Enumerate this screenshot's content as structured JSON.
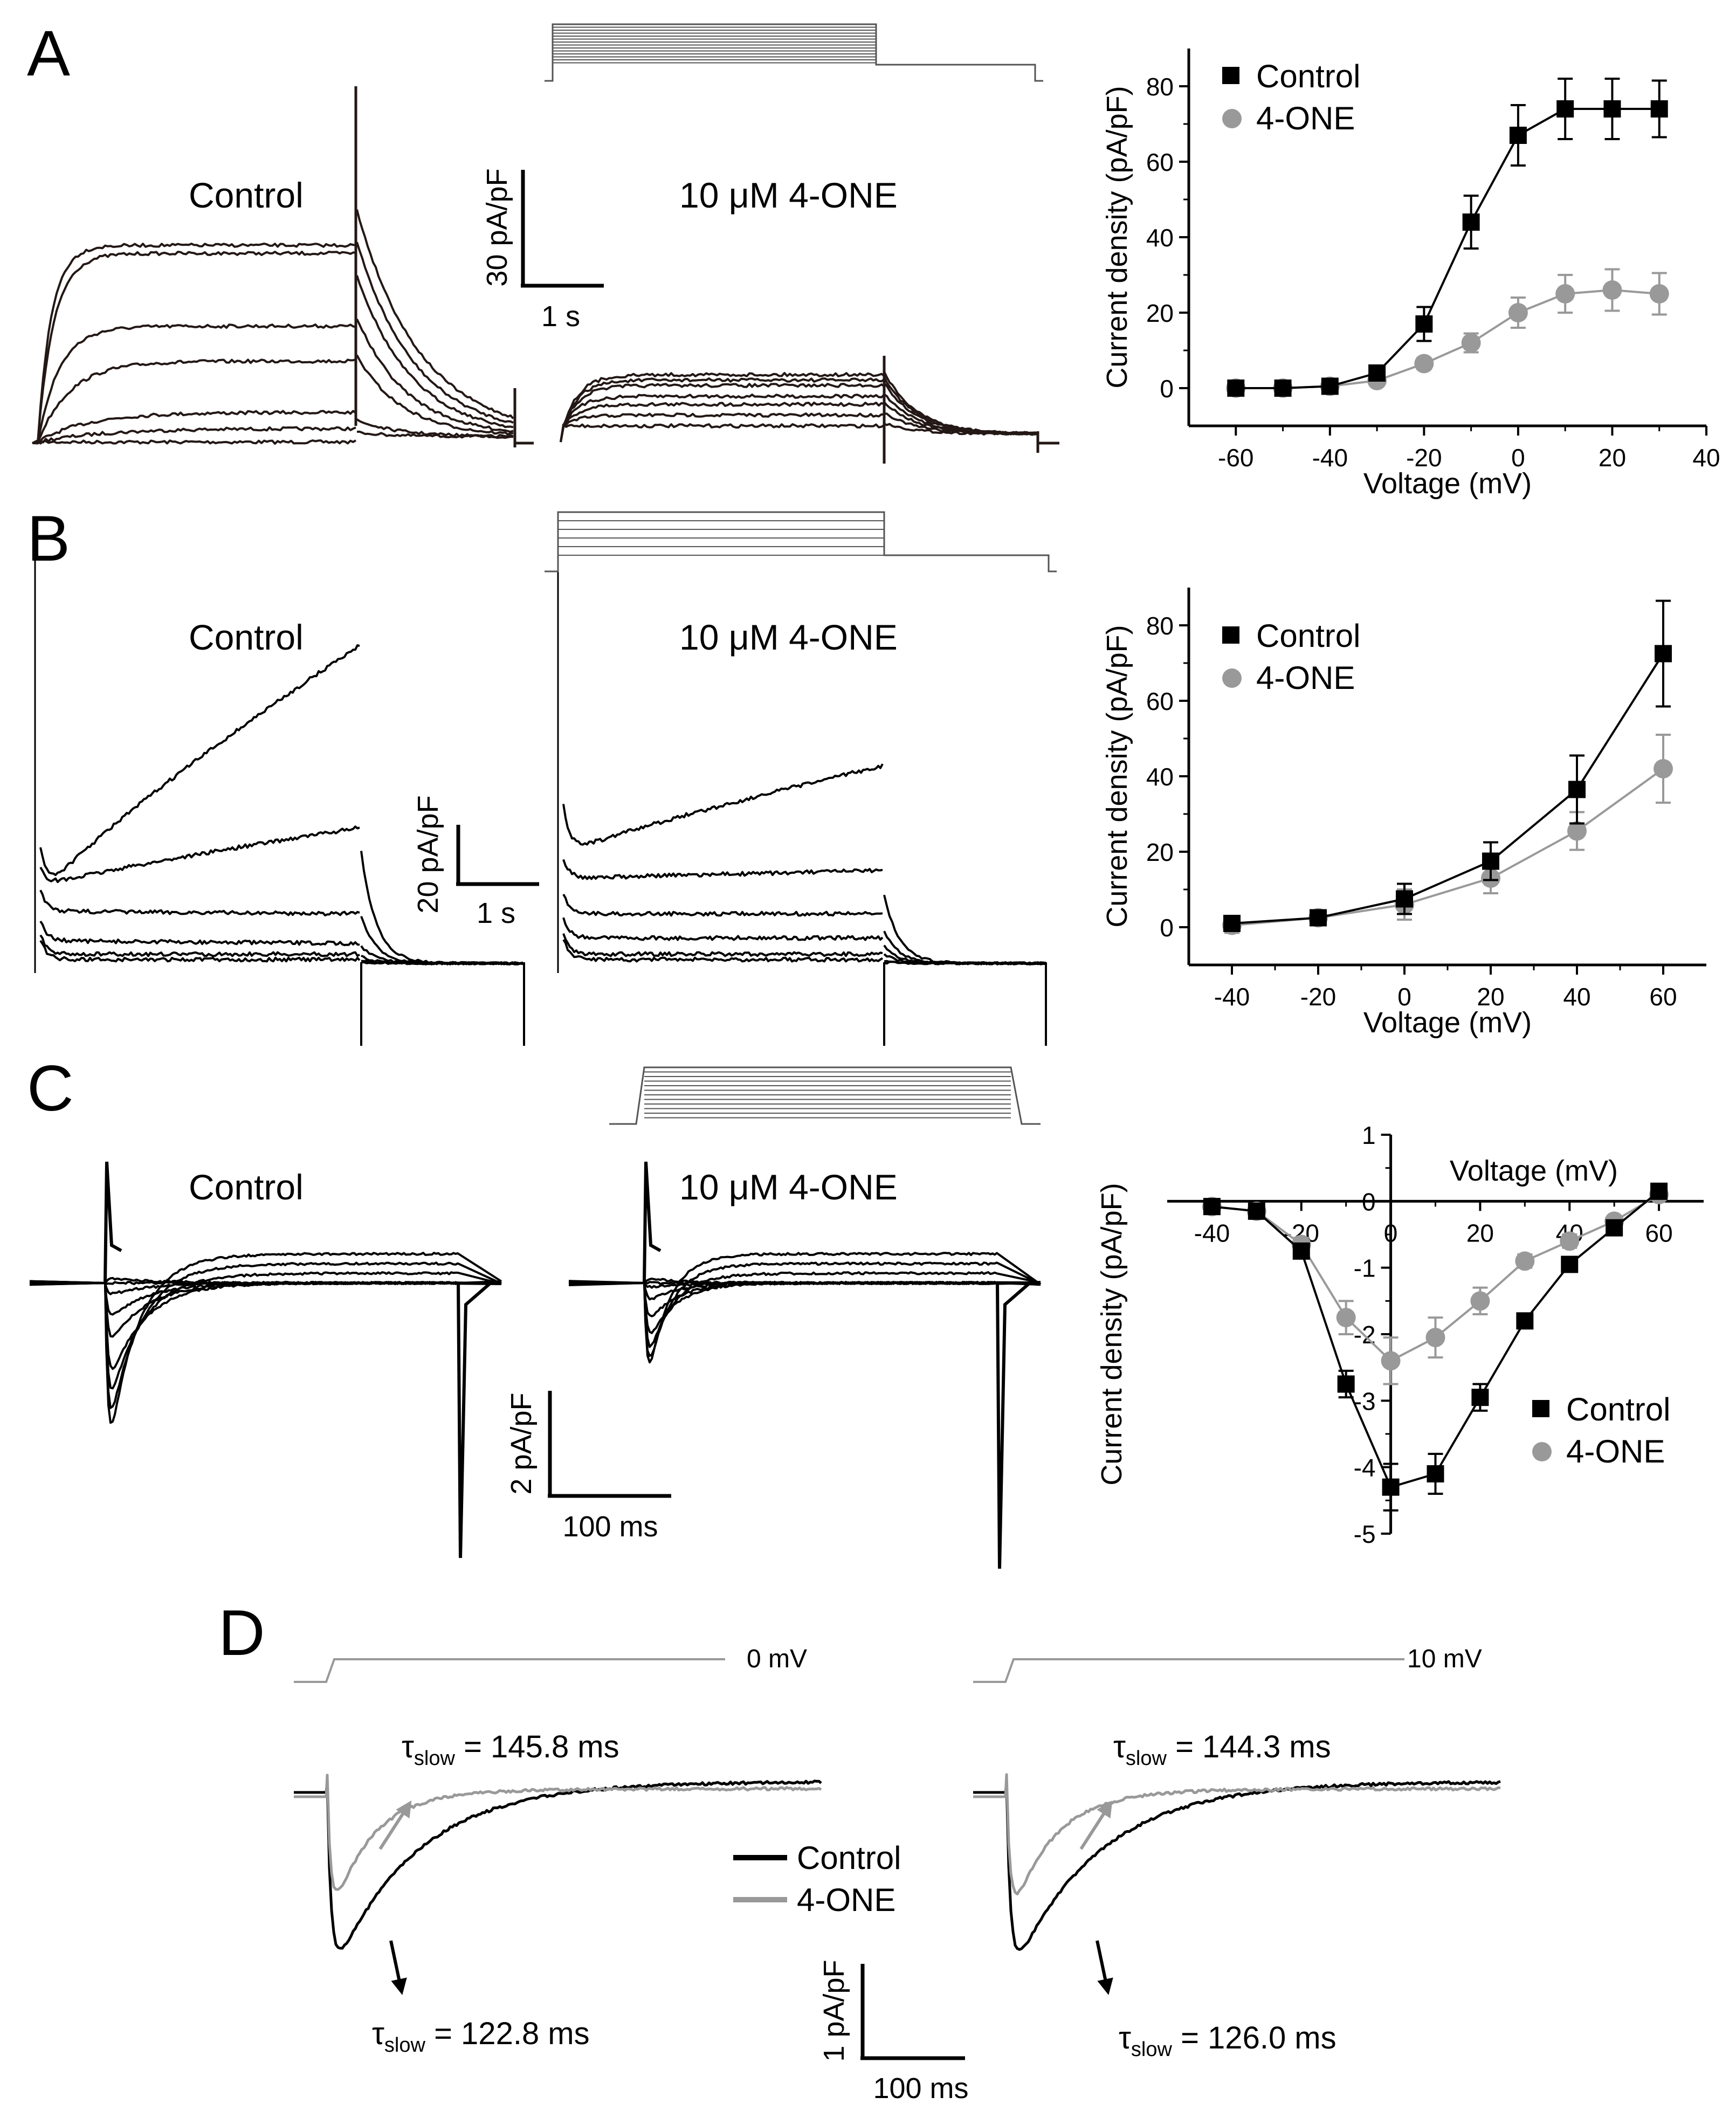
{
  "figure": {
    "panel_labels": [
      "A",
      "B",
      "C",
      "D"
    ],
    "colors": {
      "control": "#000000",
      "one": "#999999",
      "trace_A": "#231815"
    }
  },
  "panelA": {
    "label_control": "Control",
    "label_drug": "10 μM 4-ONE",
    "scale_y": "30 pA/pF",
    "scale_x": "1 s"
  },
  "panelB": {
    "label_control": "Control",
    "label_drug": "10 μM 4-ONE",
    "scale_y": "20 pA/pF",
    "scale_x": "1 s"
  },
  "panelC": {
    "label_control": "Control",
    "label_drug": "10 μM 4-ONE",
    "scale_y": "2 pA/pF",
    "scale_x": "100 ms"
  },
  "panelD": {
    "left": {
      "step_label": "0 mV",
      "tau_one_sym": "τ",
      "tau_one_sub": "slow",
      "tau_one_val": " = 145.8 ms",
      "tau_ctrl_sym": "τ",
      "tau_ctrl_sub": "slow",
      "tau_ctrl_val": " = 122.8 ms"
    },
    "right": {
      "step_label": "10 mV",
      "tau_one_sym": "τ",
      "tau_one_sub": "slow",
      "tau_one_val": " = 144.3 ms",
      "tau_ctrl_sym": "τ",
      "tau_ctrl_sub": "slow",
      "tau_ctrl_val": " = 126.0 ms"
    },
    "legend": [
      "Control",
      "4-ONE"
    ],
    "scale_y": "1 pA/pF",
    "scale_x": "100 ms"
  },
  "chart_data": [
    {
      "id": "A",
      "type": "line",
      "title": "",
      "xlabel": "Voltage (mV)",
      "ylabel": "Current density (pA/pF)",
      "xlim": [
        -70,
        40
      ],
      "ylim": [
        -10,
        90
      ],
      "xticks": [
        -60,
        -40,
        -20,
        0,
        20,
        40
      ],
      "yticks": [
        0,
        20,
        40,
        60,
        80
      ],
      "legend_position": "top-left",
      "x": [
        -60,
        -50,
        -40,
        -30,
        -20,
        -10,
        0,
        10,
        20,
        30
      ],
      "series": [
        {
          "name": "Control",
          "marker": "square",
          "values": [
            0,
            0,
            0.5,
            4,
            17,
            44,
            67,
            74,
            74,
            74
          ],
          "errors": [
            0.5,
            0.5,
            1,
            1.5,
            4.5,
            7,
            8,
            8,
            8,
            7.5
          ]
        },
        {
          "name": "4-ONE",
          "marker": "circle",
          "values": [
            0,
            0,
            0.5,
            2,
            6.5,
            12,
            20,
            25,
            26,
            25
          ],
          "errors": [
            0.5,
            0.5,
            0.8,
            1,
            1.5,
            2.5,
            4,
            5,
            5.5,
            5.5
          ]
        }
      ]
    },
    {
      "id": "B",
      "type": "line",
      "title": "",
      "xlabel": "Voltage (mV)",
      "ylabel": "Current density (pA/pF)",
      "xlim": [
        -50,
        70
      ],
      "ylim": [
        -10,
        90
      ],
      "xticks": [
        -40,
        -20,
        0,
        20,
        40,
        60
      ],
      "yticks": [
        0,
        20,
        40,
        60,
        80
      ],
      "legend_position": "top-left",
      "x": [
        -40,
        -20,
        0,
        20,
        40,
        60
      ],
      "series": [
        {
          "name": "Control",
          "marker": "square",
          "values": [
            1,
            2.5,
            7.5,
            17.5,
            36.5,
            72.5
          ],
          "errors": [
            2,
            2,
            4,
            5,
            9,
            14
          ]
        },
        {
          "name": "4-ONE",
          "marker": "circle",
          "values": [
            0.5,
            2.5,
            6,
            13,
            25.5,
            42
          ],
          "errors": [
            2,
            2,
            4,
            4,
            5,
            9
          ]
        }
      ]
    },
    {
      "id": "C",
      "type": "line",
      "title": "",
      "xlabel": "Voltage (mV)",
      "ylabel": "Current density (pA/pF)",
      "xlim": [
        -50,
        70
      ],
      "ylim": [
        -5,
        1
      ],
      "xticks": [
        -40,
        -20,
        0,
        20,
        40,
        60
      ],
      "yticks": [
        1,
        0,
        -1,
        -2,
        -3,
        -4,
        -5
      ],
      "legend_position": "bottom-right",
      "x": [
        -40,
        -30,
        -20,
        -10,
        0,
        10,
        20,
        30,
        40,
        50,
        60
      ],
      "series": [
        {
          "name": "Control",
          "marker": "square",
          "values": [
            -0.08,
            -0.15,
            -0.75,
            -2.75,
            -4.3,
            -4.1,
            -2.95,
            -1.8,
            -0.95,
            -0.4,
            0.15
          ],
          "errors": [
            0.05,
            0.05,
            0.1,
            0.2,
            0.35,
            0.3,
            0.2,
            0.1,
            0.1,
            0.05,
            0.05
          ]
        },
        {
          "name": "4-ONE",
          "marker": "circle",
          "values": [
            -0.08,
            -0.15,
            -0.65,
            -1.75,
            -2.4,
            -2.05,
            -1.5,
            -0.9,
            -0.6,
            -0.3,
            0.1
          ],
          "errors": [
            0.05,
            0.05,
            0.1,
            0.25,
            0.35,
            0.3,
            0.2,
            0.1,
            0.1,
            0.05,
            0.05
          ]
        }
      ]
    }
  ]
}
